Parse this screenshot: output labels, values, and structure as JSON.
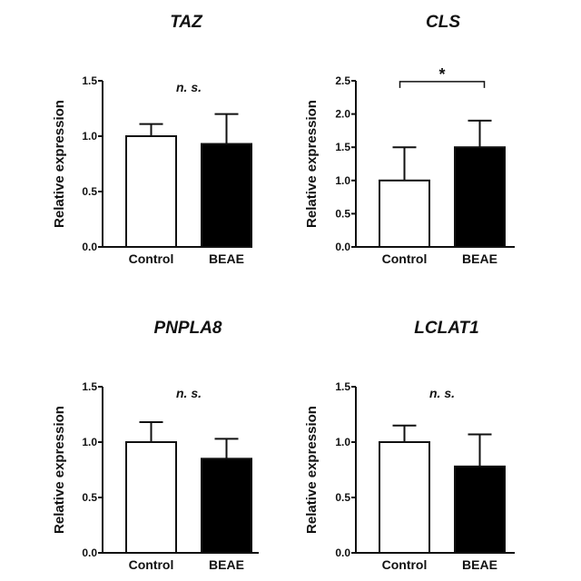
{
  "chart_data": [
    {
      "type": "bar",
      "title": "TAZ",
      "ylabel": "Relative expression",
      "categories": [
        "Control",
        "BEAE"
      ],
      "values": [
        1.0,
        0.93
      ],
      "errors": [
        0.11,
        0.27
      ],
      "ylim": [
        0,
        1.5
      ],
      "yticks": [
        "0.0",
        "0.5",
        "1.0",
        "1.5"
      ],
      "annotation": "n. s.",
      "bar_colors": [
        "#ffffff",
        "#000000"
      ]
    },
    {
      "type": "bar",
      "title": "CLS",
      "ylabel": "Relative expression",
      "categories": [
        "Control",
        "BEAE"
      ],
      "values": [
        1.0,
        1.5
      ],
      "errors": [
        0.5,
        0.4
      ],
      "ylim": [
        0,
        2.5
      ],
      "yticks": [
        "0.0",
        "0.5",
        "1.0",
        "1.5",
        "2.0",
        "2.5"
      ],
      "annotation": "*",
      "significance_bracket": true,
      "bar_colors": [
        "#ffffff",
        "#000000"
      ]
    },
    {
      "type": "bar",
      "title": "PNPLA8",
      "ylabel": "Relative expression",
      "categories": [
        "Control",
        "BEAE"
      ],
      "values": [
        1.0,
        0.85
      ],
      "errors": [
        0.18,
        0.18
      ],
      "ylim": [
        0,
        1.5
      ],
      "yticks": [
        "0.0",
        "0.5",
        "1.0",
        "1.5"
      ],
      "annotation": "n. s.",
      "bar_colors": [
        "#ffffff",
        "#000000"
      ]
    },
    {
      "type": "bar",
      "title": "LCLAT1",
      "ylabel": "Relative expression",
      "categories": [
        "Control",
        "BEAE"
      ],
      "values": [
        1.0,
        0.78
      ],
      "errors": [
        0.15,
        0.29
      ],
      "ylim": [
        0,
        1.5
      ],
      "yticks": [
        "0.0",
        "0.5",
        "1.0",
        "1.5"
      ],
      "annotation": "n. s.",
      "bar_colors": [
        "#ffffff",
        "#000000"
      ]
    }
  ]
}
